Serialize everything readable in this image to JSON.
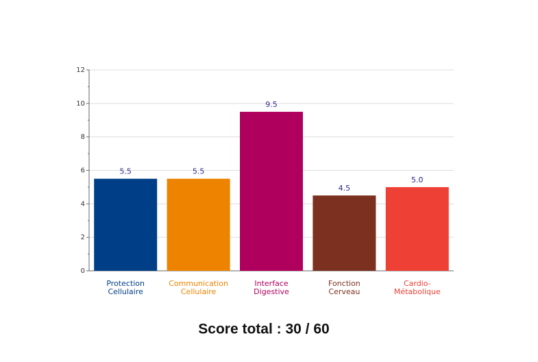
{
  "chart_data": {
    "type": "bar",
    "categories": [
      [
        "Protection",
        "Cellulaire"
      ],
      [
        "Communication",
        "Cellulaire"
      ],
      [
        "Interface",
        "Digestive"
      ],
      [
        "Fonction",
        "Cerveau"
      ],
      [
        "Cardio-",
        "Métabolique"
      ]
    ],
    "values": [
      5.5,
      5.5,
      9.5,
      4.5,
      5.0
    ],
    "value_labels": [
      "5.5",
      "5.5",
      "9.5",
      "4.5",
      "5.0"
    ],
    "colors": [
      "#003f87",
      "#ee8300",
      "#b0005e",
      "#7c3020",
      "#ee4035"
    ],
    "ylim": [
      0,
      12
    ],
    "yticks": [
      0,
      2,
      4,
      6,
      8,
      10,
      12
    ],
    "yminorticks": [
      1,
      3,
      5,
      7,
      9,
      11
    ],
    "grid": true,
    "footer": "Score total : 30 / 60"
  }
}
